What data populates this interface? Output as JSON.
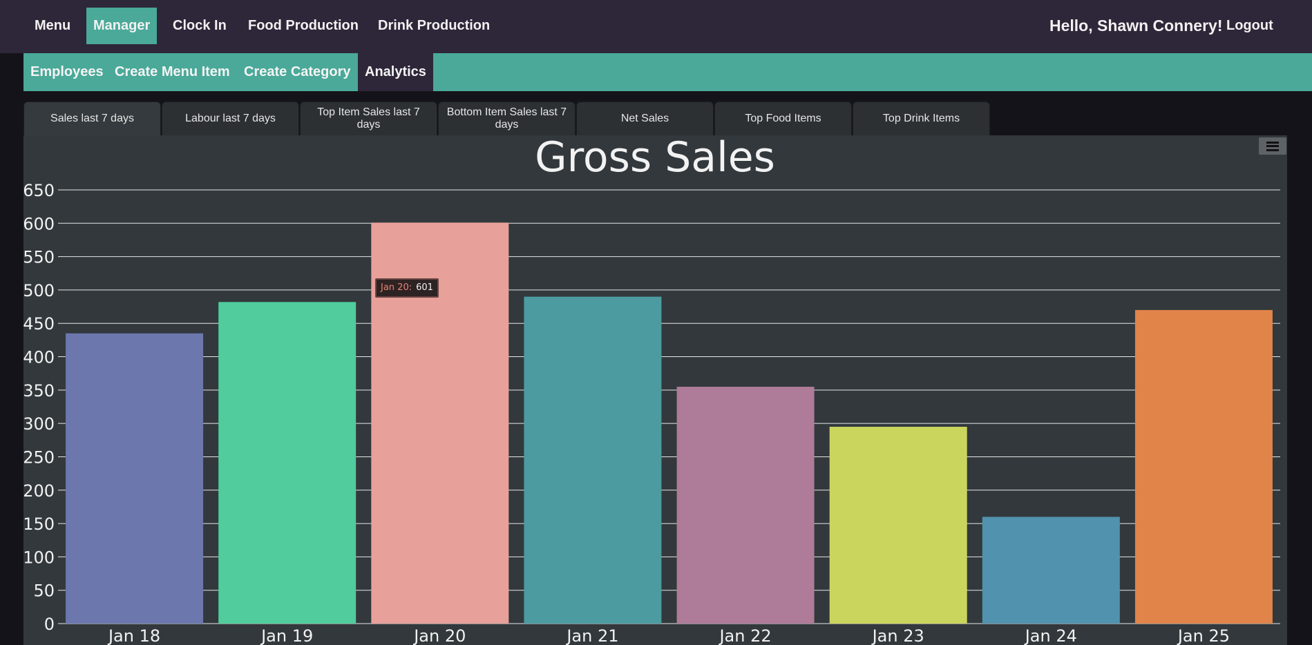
{
  "topnav": {
    "items": [
      {
        "label": "Menu",
        "active": false
      },
      {
        "label": "Manager",
        "active": true
      },
      {
        "label": "Clock In",
        "active": false
      },
      {
        "label": "Food Production",
        "active": false
      },
      {
        "label": "Drink Production",
        "active": false
      }
    ],
    "greeting": "Hello, Shawn Connery!",
    "logout_label": "Logout",
    "accent_color": "#4aa999",
    "background_color": "#2e2639"
  },
  "subnav": {
    "items": [
      {
        "label": "Employees",
        "active": false
      },
      {
        "label": "Create Menu Item",
        "active": false
      },
      {
        "label": "Create Category",
        "active": false
      },
      {
        "label": "Analytics",
        "active": true
      }
    ]
  },
  "tabs": [
    {
      "label": "Sales last 7 days",
      "active": true
    },
    {
      "label": "Labour last 7 days",
      "active": false
    },
    {
      "label": "Top Item Sales last 7 days",
      "active": false
    },
    {
      "label": "Bottom Item Sales last 7 days",
      "active": false
    },
    {
      "label": "Net Sales",
      "active": false
    },
    {
      "label": "Top Food Items",
      "active": false
    },
    {
      "label": "Top Drink Items",
      "active": false
    }
  ],
  "chart_menu_icon": "hamburger-icon",
  "tooltip": {
    "key": "Jan 20:",
    "value": "601"
  },
  "chart_data": {
    "type": "bar",
    "title": "Gross Sales",
    "xlabel": "",
    "ylabel": "",
    "categories": [
      "Jan 18",
      "Jan 19",
      "Jan 20",
      "Jan 21",
      "Jan 22",
      "Jan 23",
      "Jan 24",
      "Jan 25"
    ],
    "values": [
      435,
      482,
      601,
      490,
      355,
      295,
      160,
      470
    ],
    "colors": [
      "#6c78ad",
      "#50cc9d",
      "#e8a09a",
      "#4c9ba0",
      "#ae7b98",
      "#cad55e",
      "#5192ae",
      "#e0844a"
    ],
    "ylim": [
      0,
      650
    ],
    "yticks": [
      0,
      50,
      100,
      150,
      200,
      250,
      300,
      350,
      400,
      450,
      500,
      550,
      600,
      650
    ],
    "grid": true,
    "legend": "none"
  }
}
